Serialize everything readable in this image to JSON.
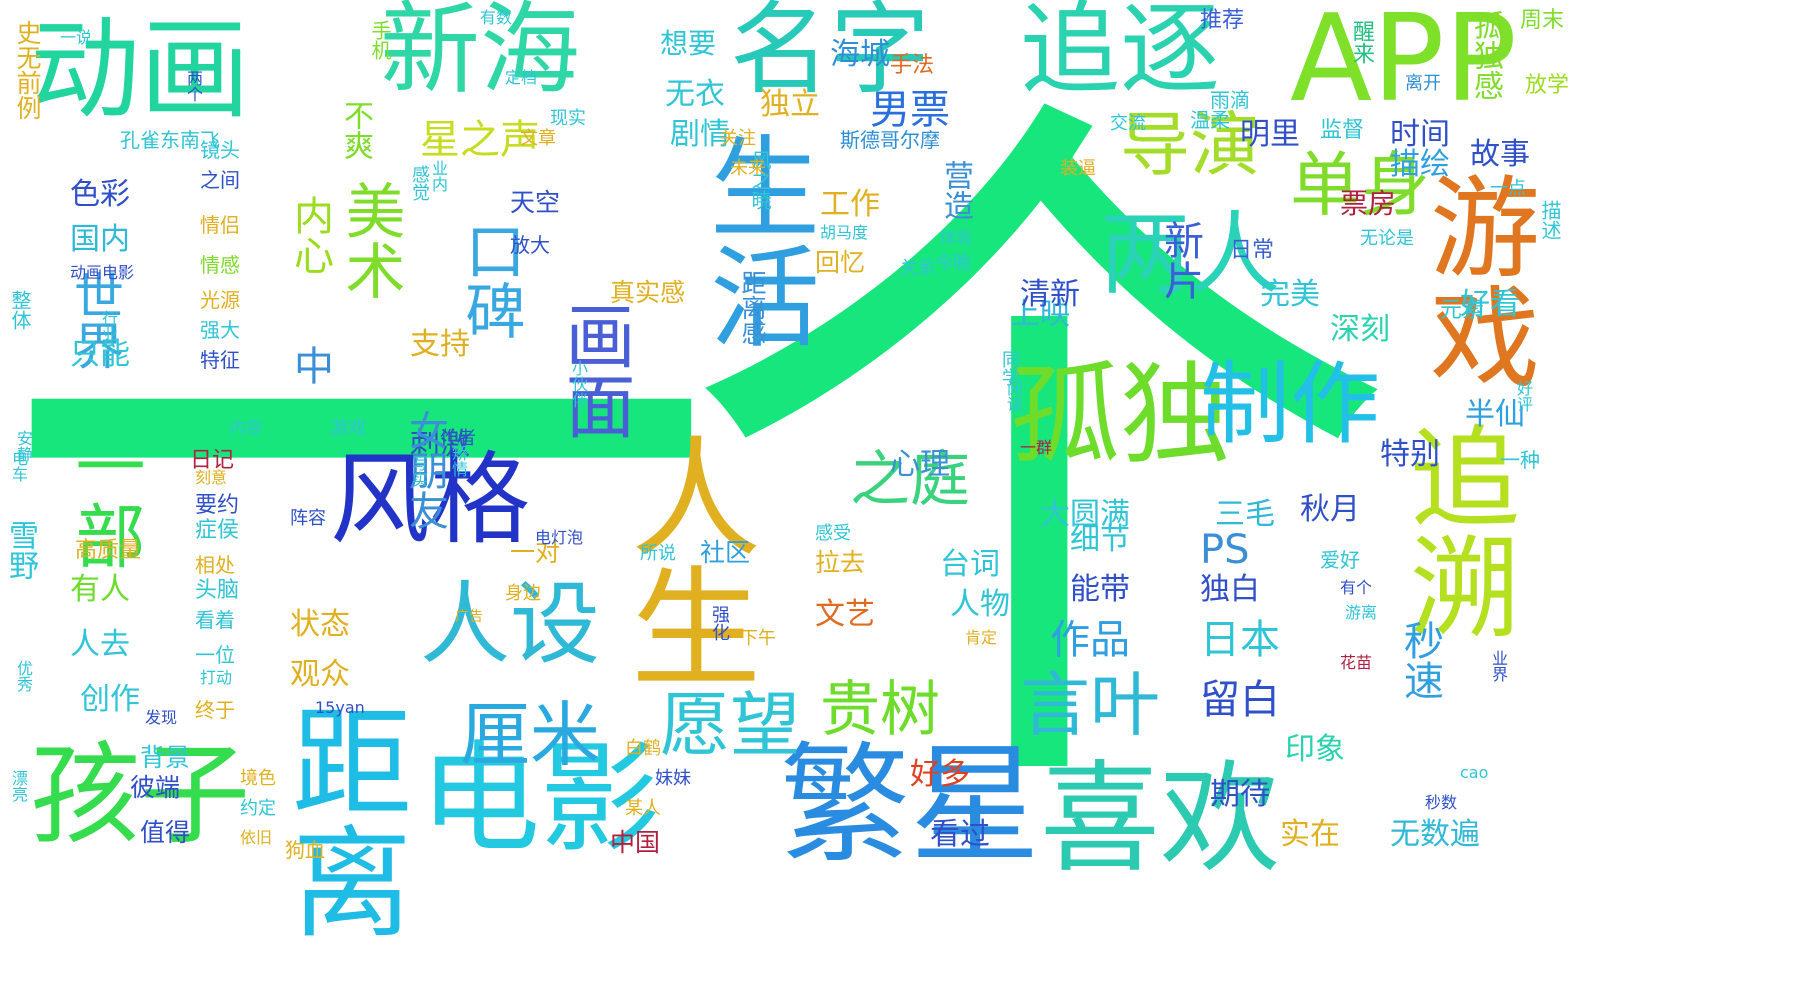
{
  "word_cloud": {
    "words": [
      {
        "text": "一个",
        "color": "#17e67d"
      },
      {
        "text": "孤独",
        "color": "#6ddc2a"
      },
      {
        "text": "电影",
        "color": "#22c9e0"
      },
      {
        "text": "动画",
        "color": "#22d59f"
      },
      {
        "text": "新海",
        "color": "#2fd6a6"
      },
      {
        "text": "名字",
        "color": "#27c9b8"
      },
      {
        "text": "追逐",
        "color": "#2ad2b0"
      },
      {
        "text": "APP",
        "color": "#7fe02a"
      },
      {
        "text": "孩子",
        "color": "#35dc4d"
      },
      {
        "text": "距离",
        "color": "#1fbde6"
      },
      {
        "text": "繁星",
        "color": "#2a8ce0"
      },
      {
        "text": "喜欢",
        "color": "#2ccab0"
      },
      {
        "text": "生活",
        "color": "#2f9fe0"
      },
      {
        "text": "人生",
        "color": "#e0b020"
      },
      {
        "text": "导演",
        "color": "#a4dc2a"
      },
      {
        "text": "两人",
        "color": "#2ad2b8"
      },
      {
        "text": "制作",
        "color": "#22c0e6"
      },
      {
        "text": "单身",
        "color": "#7fdc2a"
      },
      {
        "text": "游戏",
        "color": "#e0761f"
      },
      {
        "text": "风格",
        "color": "#2233c8"
      },
      {
        "text": "美术",
        "color": "#7fdc2a"
      },
      {
        "text": "画面",
        "color": "#4a5fd6"
      },
      {
        "text": "口碑",
        "color": "#3aa8e0"
      },
      {
        "text": "人设",
        "color": "#2fb9d6"
      },
      {
        "text": "厘米",
        "color": "#2aa8e0"
      },
      {
        "text": "愿望",
        "color": "#2fc5d6"
      },
      {
        "text": "贵树",
        "color": "#6ddc2a"
      },
      {
        "text": "言叶",
        "color": "#2fb9d6"
      },
      {
        "text": "之庭",
        "color": "#3ad27d"
      },
      {
        "text": "世界",
        "color": "#3aa8e0"
      },
      {
        "text": "一部",
        "color": "#35dc4d"
      },
      {
        "text": "追溯",
        "color": "#b4e01f"
      },
      {
        "text": "不爽",
        "color": "#7fdc2a"
      },
      {
        "text": "星之声",
        "color": "#c6dc1f"
      },
      {
        "text": "剧情",
        "color": "#2fc5d6"
      },
      {
        "text": "无衣",
        "color": "#2fc5d6"
      },
      {
        "text": "海城",
        "color": "#2f8fd6"
      },
      {
        "text": "手法",
        "color": "#e06a1f"
      },
      {
        "text": "独立",
        "color": "#e0b020"
      },
      {
        "text": "男票",
        "color": "#2a6fe0"
      },
      {
        "text": "明里",
        "color": "#2f50c8"
      },
      {
        "text": "时间",
        "color": "#2f50c8"
      },
      {
        "text": "故事",
        "color": "#2f50c8"
      },
      {
        "text": "孤独感",
        "color": "#7fdc2a"
      },
      {
        "text": "推荐",
        "color": "#3a5fd6"
      },
      {
        "text": "周末",
        "color": "#7fdc2a"
      },
      {
        "text": "放学",
        "color": "#9cdc1f"
      },
      {
        "text": "离开",
        "color": "#2f8fd6"
      },
      {
        "text": "醒来",
        "color": "#22c080"
      },
      {
        "text": "雨滴",
        "color": "#2fc5d6"
      },
      {
        "text": "斯德哥尔摩",
        "color": "#2f8fd6"
      },
      {
        "text": "监督",
        "color": "#2fc5d6"
      },
      {
        "text": "温柔",
        "color": "#2fc5d6"
      },
      {
        "text": "交流",
        "color": "#2fc5d6"
      },
      {
        "text": "描绘",
        "color": "#2f9fe0"
      },
      {
        "text": "票房",
        "color": "#b02040"
      },
      {
        "text": "营造",
        "color": "#3a8fd6"
      },
      {
        "text": "工作",
        "color": "#e0b020"
      },
      {
        "text": "上映",
        "color": "#2fb9d6"
      },
      {
        "text": "心理",
        "color": "#3a8fd6"
      },
      {
        "text": "新片",
        "color": "#3a5fd6"
      },
      {
        "text": "日常",
        "color": "#3a5fd6"
      },
      {
        "text": "清新",
        "color": "#2f50c8"
      },
      {
        "text": "完美",
        "color": "#2fc5d6"
      },
      {
        "text": "深刻",
        "color": "#2ad2b0"
      },
      {
        "text": "好看",
        "color": "#2fc5d6"
      },
      {
        "text": "元素",
        "color": "#2fc5d6"
      },
      {
        "text": "描述",
        "color": "#2fc5d6"
      },
      {
        "text": "一点",
        "color": "#2fc5d6"
      },
      {
        "text": "无论是",
        "color": "#2fc5d6"
      },
      {
        "text": "半仙",
        "color": "#2f9fe0"
      },
      {
        "text": "一种",
        "color": "#2fc5d6"
      },
      {
        "text": "特别",
        "color": "#2f50c8"
      },
      {
        "text": "三毛",
        "color": "#2fb9d6"
      },
      {
        "text": "秋月",
        "color": "#2f50c8"
      },
      {
        "text": "大圆满",
        "color": "#2fc5d6"
      },
      {
        "text": "细节",
        "color": "#2fc5d6"
      },
      {
        "text": "台词",
        "color": "#2fc5d6"
      },
      {
        "text": "PS",
        "color": "#3a8fd6"
      },
      {
        "text": "独白",
        "color": "#2f50c8"
      },
      {
        "text": "能带",
        "color": "#2f50c8"
      },
      {
        "text": "人物",
        "color": "#2fc5d6"
      },
      {
        "text": "作品",
        "color": "#2f9fe0"
      },
      {
        "text": "日本",
        "color": "#2fc5d6"
      },
      {
        "text": "秒速",
        "color": "#2f9fe0"
      },
      {
        "text": "留白",
        "color": "#2f50c8"
      },
      {
        "text": "印象",
        "color": "#2ad2b0"
      },
      {
        "text": "期待",
        "color": "#2f50c8"
      },
      {
        "text": "实在",
        "color": "#e0b020"
      },
      {
        "text": "无数遍",
        "color": "#2fb9d6"
      },
      {
        "text": "好多",
        "color": "#e0401f"
      },
      {
        "text": "看过",
        "color": "#2f50c8"
      },
      {
        "text": "中国",
        "color": "#b02040"
      },
      {
        "text": "文艺",
        "color": "#e06a1f"
      },
      {
        "text": "拉去",
        "color": "#e0b020"
      },
      {
        "text": "感受",
        "color": "#2fc5d6"
      },
      {
        "text": "社区",
        "color": "#2f9fe0"
      },
      {
        "text": "一对",
        "color": "#e0b020"
      },
      {
        "text": "天空",
        "color": "#2f50c8"
      },
      {
        "text": "放大",
        "color": "#2f50c8"
      },
      {
        "text": "风之暁",
        "color": "#2fc5d6"
      },
      {
        "text": "距离感",
        "color": "#3a8fd6"
      },
      {
        "text": "真实感",
        "color": "#e0b020"
      },
      {
        "text": "回忆",
        "color": "#e0b020"
      },
      {
        "text": "胡马度",
        "color": "#2fc5d6"
      },
      {
        "text": "今晚",
        "color": "#2fc5d6"
      },
      {
        "text": "体验",
        "color": "#2fc5d6"
      },
      {
        "text": "关系",
        "color": "#2fc5d6"
      },
      {
        "text": "装逼",
        "color": "#e0b020"
      },
      {
        "text": "未来",
        "color": "#e0b020"
      },
      {
        "text": "关注",
        "color": "#e0b020"
      },
      {
        "text": "文章",
        "color": "#e0b020"
      },
      {
        "text": "现实",
        "color": "#2fc5d6"
      },
      {
        "text": "想要",
        "color": "#2fc5d6"
      },
      {
        "text": "有数",
        "color": "#2fc5d6"
      },
      {
        "text": "定档",
        "color": "#2fc5d6"
      },
      {
        "text": "内心",
        "color": "#9cdc1f"
      },
      {
        "text": "刺激",
        "color": "#2f50c8"
      },
      {
        "text": "支持",
        "color": "#e0b020"
      },
      {
        "text": "中",
        "color": "#3a8fd6"
      },
      {
        "text": "女朋友",
        "color": "#3a8fd6"
      },
      {
        "text": "状态",
        "color": "#e0b020"
      },
      {
        "text": "观众",
        "color": "#e0b020"
      },
      {
        "text": "手机",
        "color": "#7fdc2a"
      },
      {
        "text": "孔雀东南飞",
        "color": "#2fc5d6"
      },
      {
        "text": "镜头",
        "color": "#2fc5d6"
      },
      {
        "text": "之间",
        "color": "#2f50c8"
      },
      {
        "text": "情侣",
        "color": "#e0b020"
      },
      {
        "text": "情感",
        "color": "#7fdc2a"
      },
      {
        "text": "光源",
        "color": "#e0b020"
      },
      {
        "text": "强大",
        "color": "#2fc5d6"
      },
      {
        "text": "特征",
        "color": "#2f50c8"
      },
      {
        "text": "感觉",
        "color": "#2fc5d6"
      },
      {
        "text": "业内",
        "color": "#2fc5d6"
      },
      {
        "text": "小伙伴",
        "color": "#2fc5d6"
      },
      {
        "text": "作者",
        "color": "#2f50c8"
      },
      {
        "text": "写实",
        "color": "#2fc5d6"
      },
      {
        "text": "矫情",
        "color": "#2fc5d6"
      },
      {
        "text": "同学",
        "color": "#2fc5d6"
      },
      {
        "text": "阅读",
        "color": "#2fc5d6"
      },
      {
        "text": "一群",
        "color": "#b02040"
      },
      {
        "text": "游戏",
        "color": "#2fc5d6"
      },
      {
        "text": "电灯泡",
        "color": "#2f50c8"
      },
      {
        "text": "阵容",
        "color": "#2f50c8"
      },
      {
        "text": "所说",
        "color": "#2fc5d6"
      },
      {
        "text": "身边",
        "color": "#e0b020"
      },
      {
        "text": "广告",
        "color": "#e0b020"
      },
      {
        "text": "强化",
        "color": "#2f50c8"
      },
      {
        "text": "下午",
        "color": "#e0b020"
      },
      {
        "text": "15yan",
        "color": "#2f50c8"
      },
      {
        "text": "白鹤",
        "color": "#e0b020"
      },
      {
        "text": "妹妹",
        "color": "#2f50c8"
      },
      {
        "text": "某人",
        "color": "#e0b020"
      },
      {
        "text": "爱好",
        "color": "#2fc5d6"
      },
      {
        "text": "有个",
        "color": "#2f50c8"
      },
      {
        "text": "游离",
        "color": "#2fc5d6"
      },
      {
        "text": "肯定",
        "color": "#e0b020"
      },
      {
        "text": "花苗",
        "color": "#b02040"
      },
      {
        "text": "业界",
        "color": "#2f50c8"
      },
      {
        "text": "cao",
        "color": "#2fc5d6"
      },
      {
        "text": "秒数",
        "color": "#2f50c8"
      },
      {
        "text": "好评",
        "color": "#2fc5d6"
      },
      {
        "text": "色彩",
        "color": "#2f50c8"
      },
      {
        "text": "国内",
        "color": "#2fb9d6"
      },
      {
        "text": "只能",
        "color": "#2fc5d6"
      },
      {
        "text": "动画电影",
        "color": "#2f50c8"
      },
      {
        "text": "行业",
        "color": "#2fc5d6"
      },
      {
        "text": "整体",
        "color": "#2fc5d6"
      },
      {
        "text": "有人",
        "color": "#6ddc2a"
      },
      {
        "text": "人去",
        "color": "#2fc5d6"
      },
      {
        "text": "创作",
        "color": "#2fc5d6"
      },
      {
        "text": "背景",
        "color": "#2fc5d6"
      },
      {
        "text": "彼端",
        "color": "#2f50c8"
      },
      {
        "text": "值得",
        "color": "#2f50c8"
      },
      {
        "text": "高质量",
        "color": "#e0b020"
      },
      {
        "text": "日记",
        "color": "#b02040"
      },
      {
        "text": "刻意",
        "color": "#e0b020"
      },
      {
        "text": "要约",
        "color": "#2f50c8"
      },
      {
        "text": "症侯",
        "color": "#2fc5d6"
      },
      {
        "text": "相处",
        "color": "#e0b020"
      },
      {
        "text": "头脑",
        "color": "#2fc5d6"
      },
      {
        "text": "看着",
        "color": "#2fc5d6"
      },
      {
        "text": "一位",
        "color": "#2fc5d6"
      },
      {
        "text": "打动",
        "color": "#2fc5d6"
      },
      {
        "text": "终于",
        "color": "#e0b020"
      },
      {
        "text": "发现",
        "color": "#2f50c8"
      },
      {
        "text": "境色",
        "color": "#e0b020"
      },
      {
        "text": "约定",
        "color": "#2fc5d6"
      },
      {
        "text": "依旧",
        "color": "#e0b020"
      },
      {
        "text": "狗血",
        "color": "#e0b020"
      },
      {
        "text": "雪野",
        "color": "#2fc5d6"
      },
      {
        "text": "电车",
        "color": "#2fc5d6"
      },
      {
        "text": "安静",
        "color": "#2fc5d6"
      },
      {
        "text": "优秀",
        "color": "#2fc5d6"
      },
      {
        "text": "漂亮",
        "color": "#2fc5d6"
      },
      {
        "text": "史无前例",
        "color": "#e0b020"
      },
      {
        "text": "一说",
        "color": "#2fc5d6"
      },
      {
        "text": "两个",
        "color": "#2f50c8"
      },
      {
        "text": "内容",
        "color": "#2fc5d6"
      },
      {
        "text": "无数遍",
        "color": "#2fc5d6"
      }
    ]
  }
}
